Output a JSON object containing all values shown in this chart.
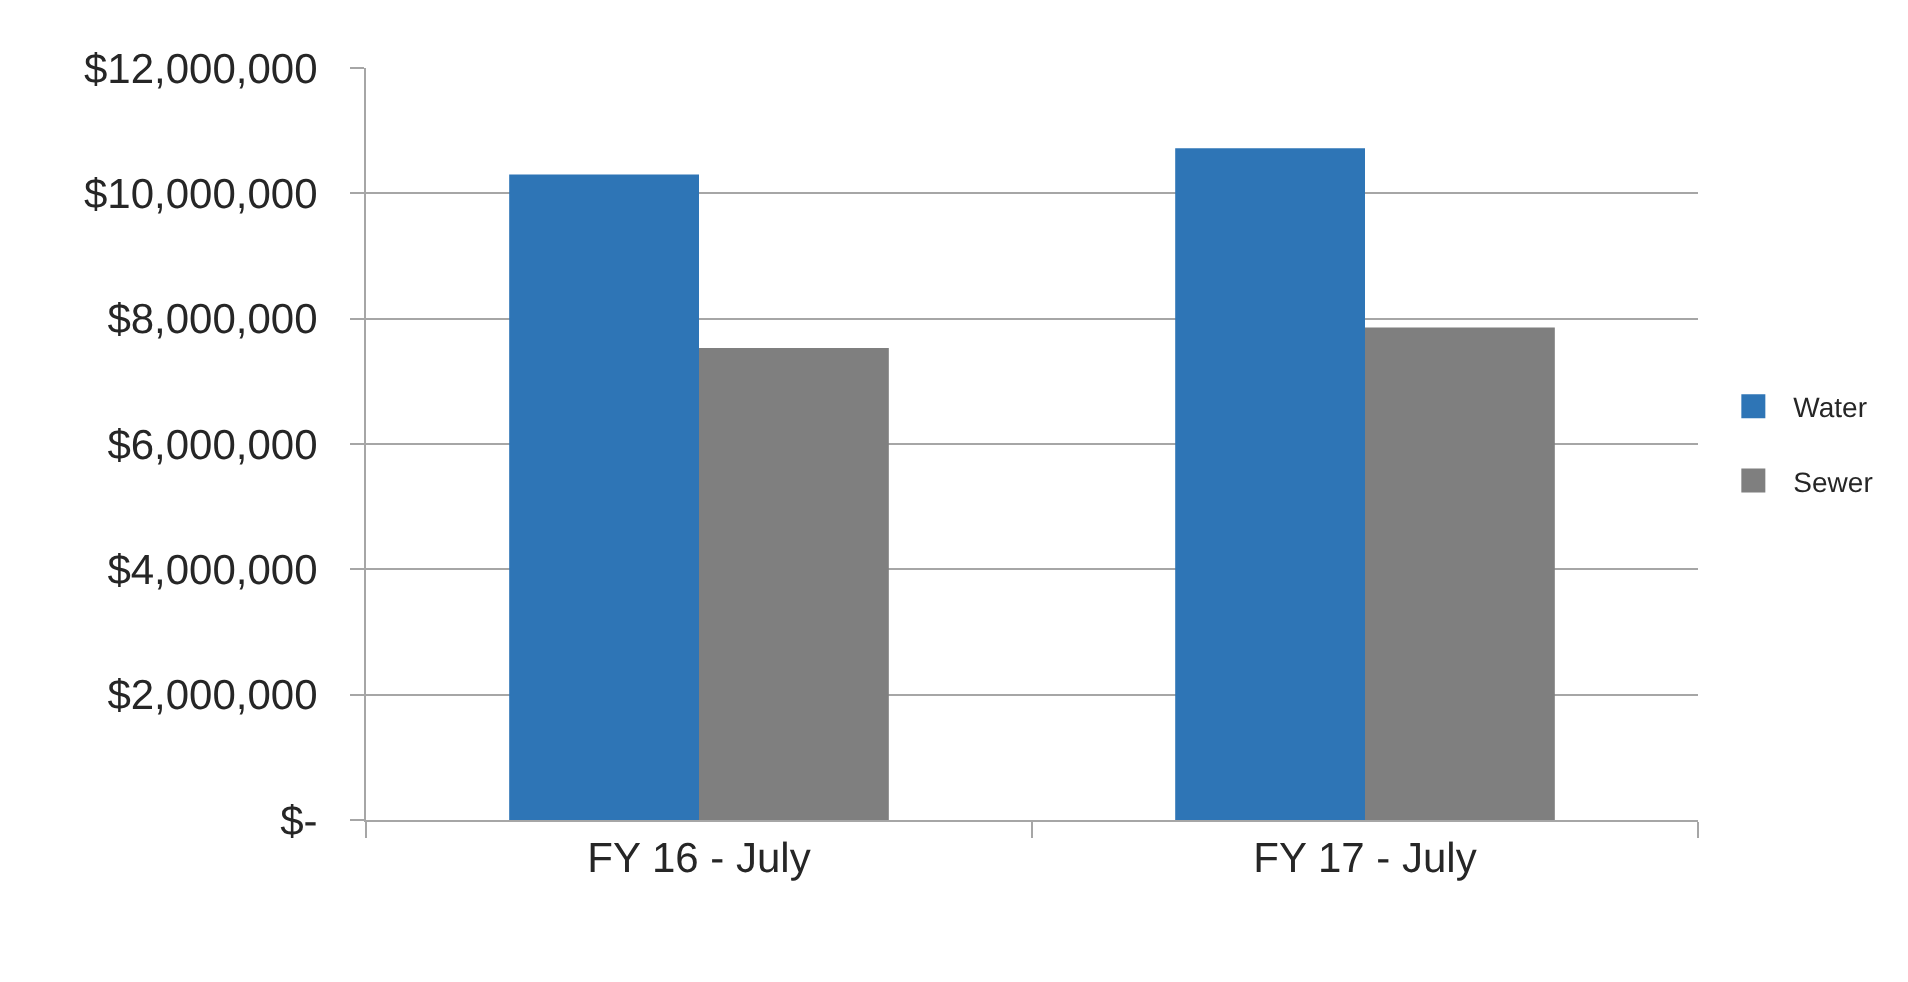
{
  "chart_data": {
    "type": "bar",
    "categories": [
      "FY 16 - July",
      "FY 17 - July"
    ],
    "series": [
      {
        "name": "Water",
        "color": "#2e75b6",
        "values": [
          10300000,
          10720000
        ]
      },
      {
        "name": "Sewer",
        "color": "#7f7f7f",
        "values": [
          7530000,
          7860000
        ]
      }
    ],
    "ylim": [
      0,
      12000000
    ],
    "yticks": [
      {
        "value": 0,
        "label": "$-"
      },
      {
        "value": 2000000,
        "label": "$2,000,000"
      },
      {
        "value": 4000000,
        "label": "$4,000,000"
      },
      {
        "value": 6000000,
        "label": "$6,000,000"
      },
      {
        "value": 8000000,
        "label": "$8,000,000"
      },
      {
        "value": 10000000,
        "label": "$10,000,000"
      },
      {
        "value": 12000000,
        "label": "$12,000,000"
      }
    ],
    "grid": "y",
    "legend": "right"
  }
}
